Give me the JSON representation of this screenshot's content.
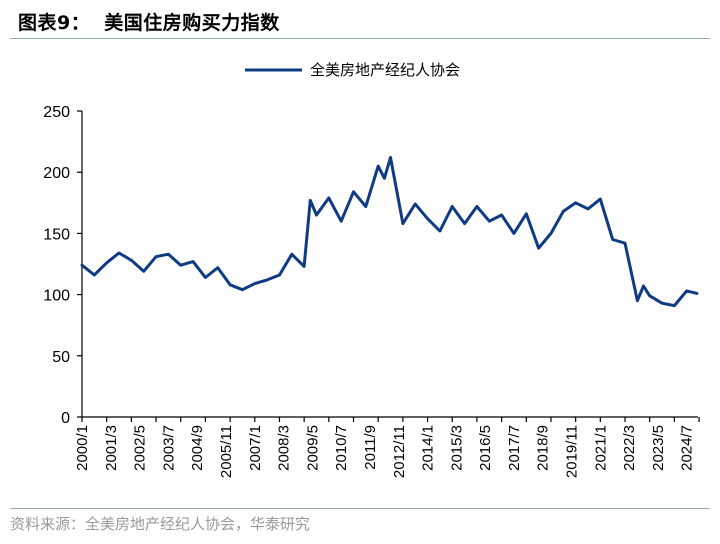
{
  "header": {
    "figure_number": "图表9：",
    "title": "美国住房购买力指数"
  },
  "source": "资料来源：全美房地产经纪人协会，华泰研究",
  "colors": {
    "line": "#0e3b84",
    "axis": "#000000",
    "rule": "#9aaab8"
  },
  "chart_data": {
    "type": "line",
    "title": "美国住房购买力指数",
    "xlabel": "",
    "ylabel": "",
    "ylim": [
      0,
      250
    ],
    "yticks": [
      0,
      50,
      100,
      150,
      200,
      250
    ],
    "grid": false,
    "legend_position": "top-center",
    "x_tick_labels": [
      "2000/1",
      "2001/3",
      "2002/5",
      "2003/7",
      "2004/9",
      "2005/11",
      "2007/1",
      "2008/3",
      "2009/5",
      "2010/7",
      "2011/9",
      "2012/11",
      "2014/1",
      "2015/3",
      "2016/5",
      "2017/7",
      "2018/9",
      "2019/11",
      "2021/1",
      "2022/3",
      "2023/5",
      "2024/7"
    ],
    "series": [
      {
        "name": "全美房地产经纪人协会",
        "x": [
          "2000/01",
          "2000/07",
          "2001/01",
          "2001/07",
          "2002/01",
          "2002/07",
          "2003/01",
          "2003/07",
          "2004/01",
          "2004/07",
          "2005/01",
          "2005/07",
          "2006/01",
          "2006/07",
          "2007/01",
          "2007/07",
          "2008/01",
          "2008/07",
          "2009/01",
          "2009/04",
          "2009/07",
          "2010/01",
          "2010/07",
          "2011/01",
          "2011/07",
          "2012/01",
          "2012/04",
          "2012/07",
          "2013/01",
          "2013/07",
          "2014/01",
          "2014/07",
          "2015/01",
          "2015/07",
          "2016/01",
          "2016/07",
          "2017/01",
          "2017/07",
          "2018/01",
          "2018/07",
          "2019/01",
          "2019/07",
          "2020/01",
          "2020/07",
          "2021/01",
          "2021/07",
          "2022/01",
          "2022/07",
          "2022/10",
          "2023/01",
          "2023/07",
          "2024/01",
          "2024/07",
          "2024/12"
        ],
        "values": [
          124,
          116,
          126,
          134,
          128,
          119,
          131,
          133,
          124,
          127,
          114,
          122,
          108,
          104,
          109,
          112,
          116,
          133,
          123,
          177,
          165,
          179,
          160,
          184,
          172,
          205,
          195,
          212,
          158,
          174,
          162,
          152,
          172,
          158,
          172,
          160,
          165,
          150,
          166,
          138,
          150,
          168,
          175,
          170,
          178,
          145,
          142,
          95,
          107,
          99,
          93,
          91,
          103,
          101
        ]
      }
    ]
  }
}
